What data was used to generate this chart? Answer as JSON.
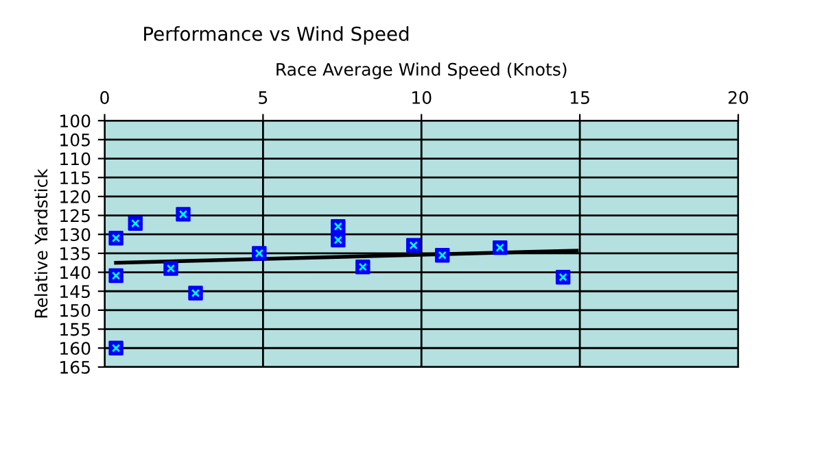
{
  "chart_data": {
    "type": "scatter",
    "title": "Performance vs Wind Speed",
    "xlabel": "Race Average Wind Speed (Knots)",
    "ylabel": "Relative Yardstick",
    "xlim": [
      0,
      20
    ],
    "xticks": [
      0,
      5,
      10,
      15,
      20
    ],
    "ylim": [
      165,
      100
    ],
    "yticks": [
      100,
      105,
      110,
      115,
      120,
      125,
      130,
      135,
      140,
      145,
      150,
      155,
      160,
      165
    ],
    "grid": true,
    "series": [
      {
        "marker": "square",
        "color": "#0000ff",
        "x": [
          0.36,
          0.36,
          0.36,
          0.97,
          2.09,
          2.48,
          2.87,
          4.88,
          7.37,
          7.37,
          8.15,
          9.75,
          10.66,
          12.48,
          14.47
        ],
        "values": [
          131.0,
          140.9,
          160.0,
          127.1,
          139.0,
          124.7,
          145.5,
          135.0,
          127.9,
          131.5,
          138.6,
          132.9,
          135.5,
          133.5,
          141.3
        ]
      },
      {
        "type": "line",
        "marker": "none",
        "color": "#000000",
        "x": [
          0.36,
          14.9
        ],
        "values": [
          137.5,
          134.3
        ]
      }
    ]
  }
}
